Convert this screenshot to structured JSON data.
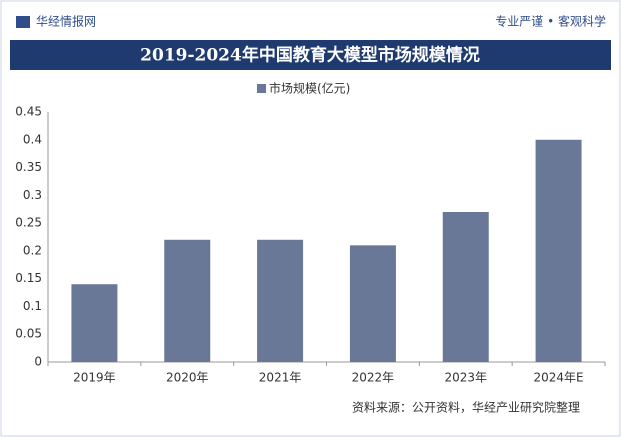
{
  "header": {
    "logo": "华经情报网",
    "slogan": "专业严谨 • 客观科学"
  },
  "chart_data": {
    "type": "bar",
    "title": "2019-2024年中国教育大模型市场规模情况",
    "categories": [
      "2019年",
      "2020年",
      "2021年",
      "2022年",
      "2023年",
      "2024年E"
    ],
    "series": [
      {
        "name": "市场规模(亿元)",
        "color": "#6a7898",
        "values": [
          0.14,
          0.22,
          0.22,
          0.21,
          0.27,
          0.4
        ]
      }
    ],
    "ylim": [
      0,
      0.45
    ],
    "yticks": [
      0,
      0.05,
      0.1,
      0.15,
      0.2,
      0.25,
      0.3,
      0.35,
      0.4,
      0.45
    ],
    "source": "资料来源：公开资料，华经产业研究院整理"
  }
}
